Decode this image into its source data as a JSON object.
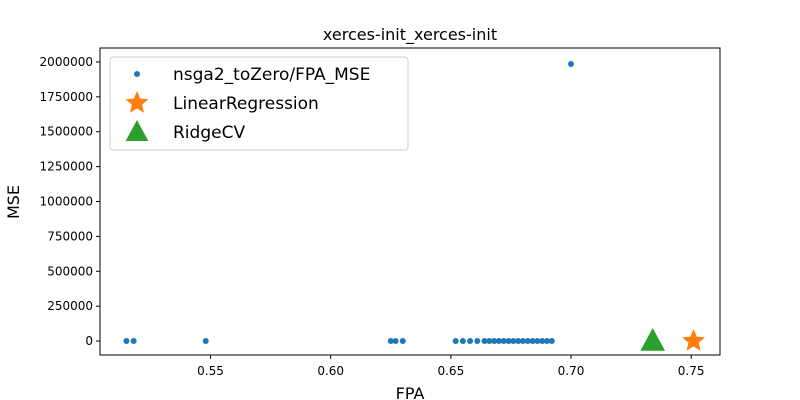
{
  "chart_data": {
    "type": "scatter",
    "title": "xerces-init_xerces-init",
    "xlabel": "FPA",
    "ylabel": "MSE",
    "xlim": [
      0.504,
      0.762
    ],
    "ylim": [
      -100000,
      2100000
    ],
    "xticks": [
      0.55,
      0.6,
      0.65,
      0.7,
      0.75
    ],
    "xtick_labels": [
      "0.55",
      "0.60",
      "0.65",
      "0.70",
      "0.75"
    ],
    "yticks": [
      0,
      250000,
      500000,
      750000,
      1000000,
      1250000,
      1500000,
      1750000,
      2000000
    ],
    "ytick_labels": [
      "0",
      "250000",
      "500000",
      "750000",
      "1000000",
      "1250000",
      "1500000",
      "1750000",
      "2000000"
    ],
    "legend_position": "top-left",
    "series": [
      {
        "name": "nsga2_toZero/FPA_MSE",
        "marker": "dot",
        "color": "#1f77b4",
        "points": [
          [
            0.515,
            0
          ],
          [
            0.518,
            0
          ],
          [
            0.548,
            0
          ],
          [
            0.625,
            0
          ],
          [
            0.627,
            0
          ],
          [
            0.63,
            0
          ],
          [
            0.652,
            0
          ],
          [
            0.655,
            0
          ],
          [
            0.658,
            0
          ],
          [
            0.661,
            0
          ],
          [
            0.664,
            0
          ],
          [
            0.666,
            0
          ],
          [
            0.668,
            0
          ],
          [
            0.67,
            0
          ],
          [
            0.672,
            0
          ],
          [
            0.674,
            0
          ],
          [
            0.676,
            0
          ],
          [
            0.678,
            0
          ],
          [
            0.68,
            0
          ],
          [
            0.682,
            0
          ],
          [
            0.684,
            0
          ],
          [
            0.686,
            0
          ],
          [
            0.688,
            0
          ],
          [
            0.69,
            0
          ],
          [
            0.692,
            0
          ],
          [
            0.7,
            1985000
          ]
        ]
      },
      {
        "name": "LinearRegression",
        "marker": "star",
        "color": "#ff7f0e",
        "points": [
          [
            0.751,
            0
          ]
        ]
      },
      {
        "name": "RidgeCV",
        "marker": "triangle",
        "color": "#2ca02c",
        "points": [
          [
            0.734,
            0
          ]
        ]
      }
    ]
  }
}
